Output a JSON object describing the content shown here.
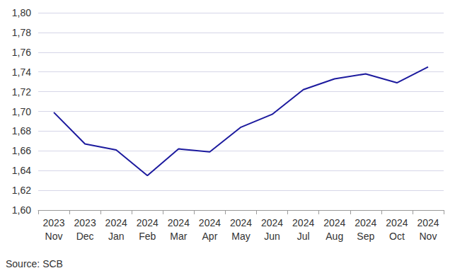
{
  "chart_data": {
    "type": "line",
    "categories": [
      "2023\nNov",
      "2023\nDec",
      "2024\nJan",
      "2024\nFeb",
      "2024\nMar",
      "2024\nApr",
      "2024\nMay",
      "2024\nJun",
      "2024\nJul",
      "2024\nAug",
      "2024\nSep",
      "2024\nOct",
      "2024\nNov"
    ],
    "values": [
      1.699,
      1.667,
      1.661,
      1.635,
      1.662,
      1.659,
      1.684,
      1.697,
      1.722,
      1.733,
      1.738,
      1.729,
      1.745
    ],
    "color": "#1c1a9e",
    "ylim": [
      1.6,
      1.8
    ],
    "yticks": [
      {
        "value": 1.6,
        "label": "1,60"
      },
      {
        "value": 1.62,
        "label": "1,62"
      },
      {
        "value": 1.64,
        "label": "1,64"
      },
      {
        "value": 1.66,
        "label": "1,66"
      },
      {
        "value": 1.68,
        "label": "1,68"
      },
      {
        "value": 1.7,
        "label": "1,70"
      },
      {
        "value": 1.72,
        "label": "1,72"
      },
      {
        "value": 1.74,
        "label": "1,74"
      },
      {
        "value": 1.76,
        "label": "1,76"
      },
      {
        "value": 1.78,
        "label": "1,78"
      },
      {
        "value": 1.8,
        "label": "1,80"
      }
    ],
    "grid": true,
    "caption": "Source: SCB"
  }
}
